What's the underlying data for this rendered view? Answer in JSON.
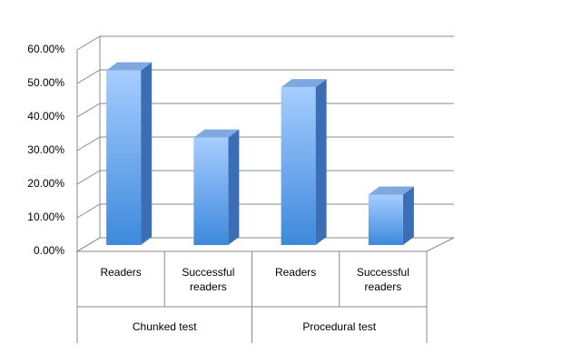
{
  "chart_data": {
    "type": "bar",
    "categories": [
      "Readers",
      "Successful readers",
      "Readers",
      "Successful readers"
    ],
    "groups": [
      "Chunked test",
      "Procedural test"
    ],
    "values": [
      52,
      32,
      47,
      15
    ],
    "color": "#4a8fe0",
    "ylim": [
      0,
      60
    ],
    "yticks": [
      {
        "value": 0,
        "label": "0.00%"
      },
      {
        "value": 10,
        "label": "10.00%"
      },
      {
        "value": 20,
        "label": "20.00%"
      },
      {
        "value": 30,
        "label": "30.00%"
      },
      {
        "value": 40,
        "label": "40.00%"
      },
      {
        "value": 50,
        "label": "50.00%"
      },
      {
        "value": 60,
        "label": "60.00%"
      }
    ],
    "grid": true
  }
}
